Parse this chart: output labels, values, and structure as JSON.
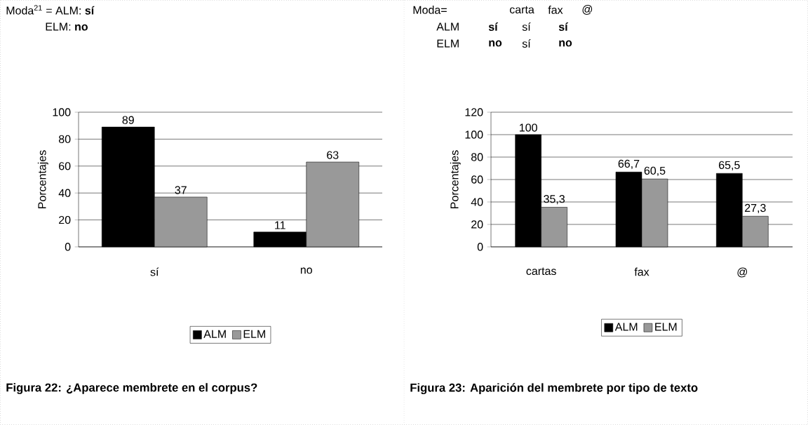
{
  "chart_data": [
    {
      "type": "bar",
      "title": "Figura 22: ¿Aparece membrete en el corpus?",
      "annotations": [
        "Moda$^{21}$ = ALM: **sí**",
        "ELM: **no**"
      ],
      "ylabel": "Porcentajes",
      "categories": [
        "sí",
        "no"
      ],
      "series": [
        {
          "name": "ALM",
          "color": "#000000",
          "values": [
            89,
            11
          ],
          "value_labels": [
            "89",
            "11"
          ]
        },
        {
          "name": "ELM",
          "color": "#999999",
          "values": [
            37,
            63
          ],
          "value_labels": [
            "37",
            "63"
          ]
        }
      ],
      "ylim": [
        0,
        100
      ],
      "yticks": [
        0,
        20,
        40,
        60,
        80,
        100
      ],
      "grid": "y",
      "legend": "bottom"
    },
    {
      "type": "bar",
      "title": "Figura 23: Aparición del membrete por tipo de texto",
      "annotations": [
        "Moda=",
        "carta",
        "fax",
        "@",
        "ALM",
        "**sí**",
        "sí",
        "**sí**",
        "ELM",
        "**no**",
        "sí",
        "**no**"
      ],
      "ylabel": "Porcentajes",
      "categories": [
        "cartas",
        "fax",
        "@"
      ],
      "series": [
        {
          "name": "ALM",
          "color": "#000000",
          "values": [
            100,
            66.7,
            65.5
          ],
          "value_labels": [
            "100",
            "66,7",
            "65,5"
          ]
        },
        {
          "name": "ELM",
          "color": "#999999",
          "values": [
            35.3,
            60.5,
            27.3
          ],
          "value_labels": [
            "35,3",
            "60,5",
            "27,3"
          ]
        }
      ],
      "ylim": [
        0,
        120
      ],
      "yticks": [
        0,
        20,
        40,
        60,
        80,
        100,
        120
      ],
      "grid": "y",
      "legend": "bottom"
    }
  ]
}
